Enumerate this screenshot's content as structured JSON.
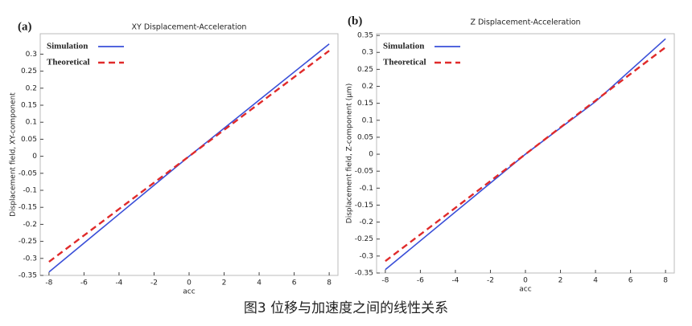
{
  "chart_data": [
    {
      "type": "line",
      "label": "(a)",
      "title": "XY Displacement-Acceleration",
      "x_label": "acc",
      "y_label": "Displacement field, XY-component",
      "x": [
        -8,
        -4,
        0,
        4,
        8
      ],
      "series": [
        {
          "name": "Simulation",
          "color": "#3a4fd8",
          "style": "solid",
          "values": [
            -0.34,
            -0.17,
            0,
            0.165,
            0.33
          ]
        },
        {
          "name": "Theoretical",
          "color": "#e02a2a",
          "style": "dashed",
          "values": [
            -0.31,
            -0.155,
            0,
            0.155,
            0.31
          ]
        }
      ],
      "xlim": [
        -8.5,
        8.5
      ],
      "xticks": [
        -8,
        -6,
        -4,
        -2,
        0,
        2,
        4,
        6,
        8
      ],
      "ylim": [
        -0.35,
        0.36
      ],
      "yticks": [
        -0.35,
        -0.3,
        -0.25,
        -0.2,
        -0.15,
        -0.1,
        -0.05,
        0,
        0.05,
        0.1,
        0.15,
        0.2,
        0.25,
        0.3
      ]
    },
    {
      "type": "line",
      "label": "(b)",
      "title": "Z Displacement-Acceleration",
      "x_label": "acc",
      "y_label": "Displacement field, Z-component (μm)",
      "x": [
        -8,
        -4,
        0,
        4,
        8
      ],
      "series": [
        {
          "name": "Simulation",
          "color": "#3a4fd8",
          "style": "solid",
          "values": [
            -0.34,
            -0.17,
            0,
            0.155,
            0.34
          ]
        },
        {
          "name": "Theoretical",
          "color": "#e02a2a",
          "style": "dashed",
          "values": [
            -0.315,
            -0.158,
            0,
            0.158,
            0.315
          ]
        }
      ],
      "xlim": [
        -8.5,
        8.5
      ],
      "xticks": [
        -8,
        -6,
        -4,
        -2,
        0,
        2,
        4,
        6,
        8
      ],
      "ylim": [
        -0.35,
        0.355
      ],
      "yticks": [
        -0.35,
        -0.3,
        -0.25,
        -0.2,
        -0.15,
        -0.1,
        -0.05,
        0,
        0.05,
        0.1,
        0.15,
        0.2,
        0.25,
        0.3,
        0.35
      ]
    }
  ],
  "caption": "图3 位移与加速度之间的线性关系"
}
